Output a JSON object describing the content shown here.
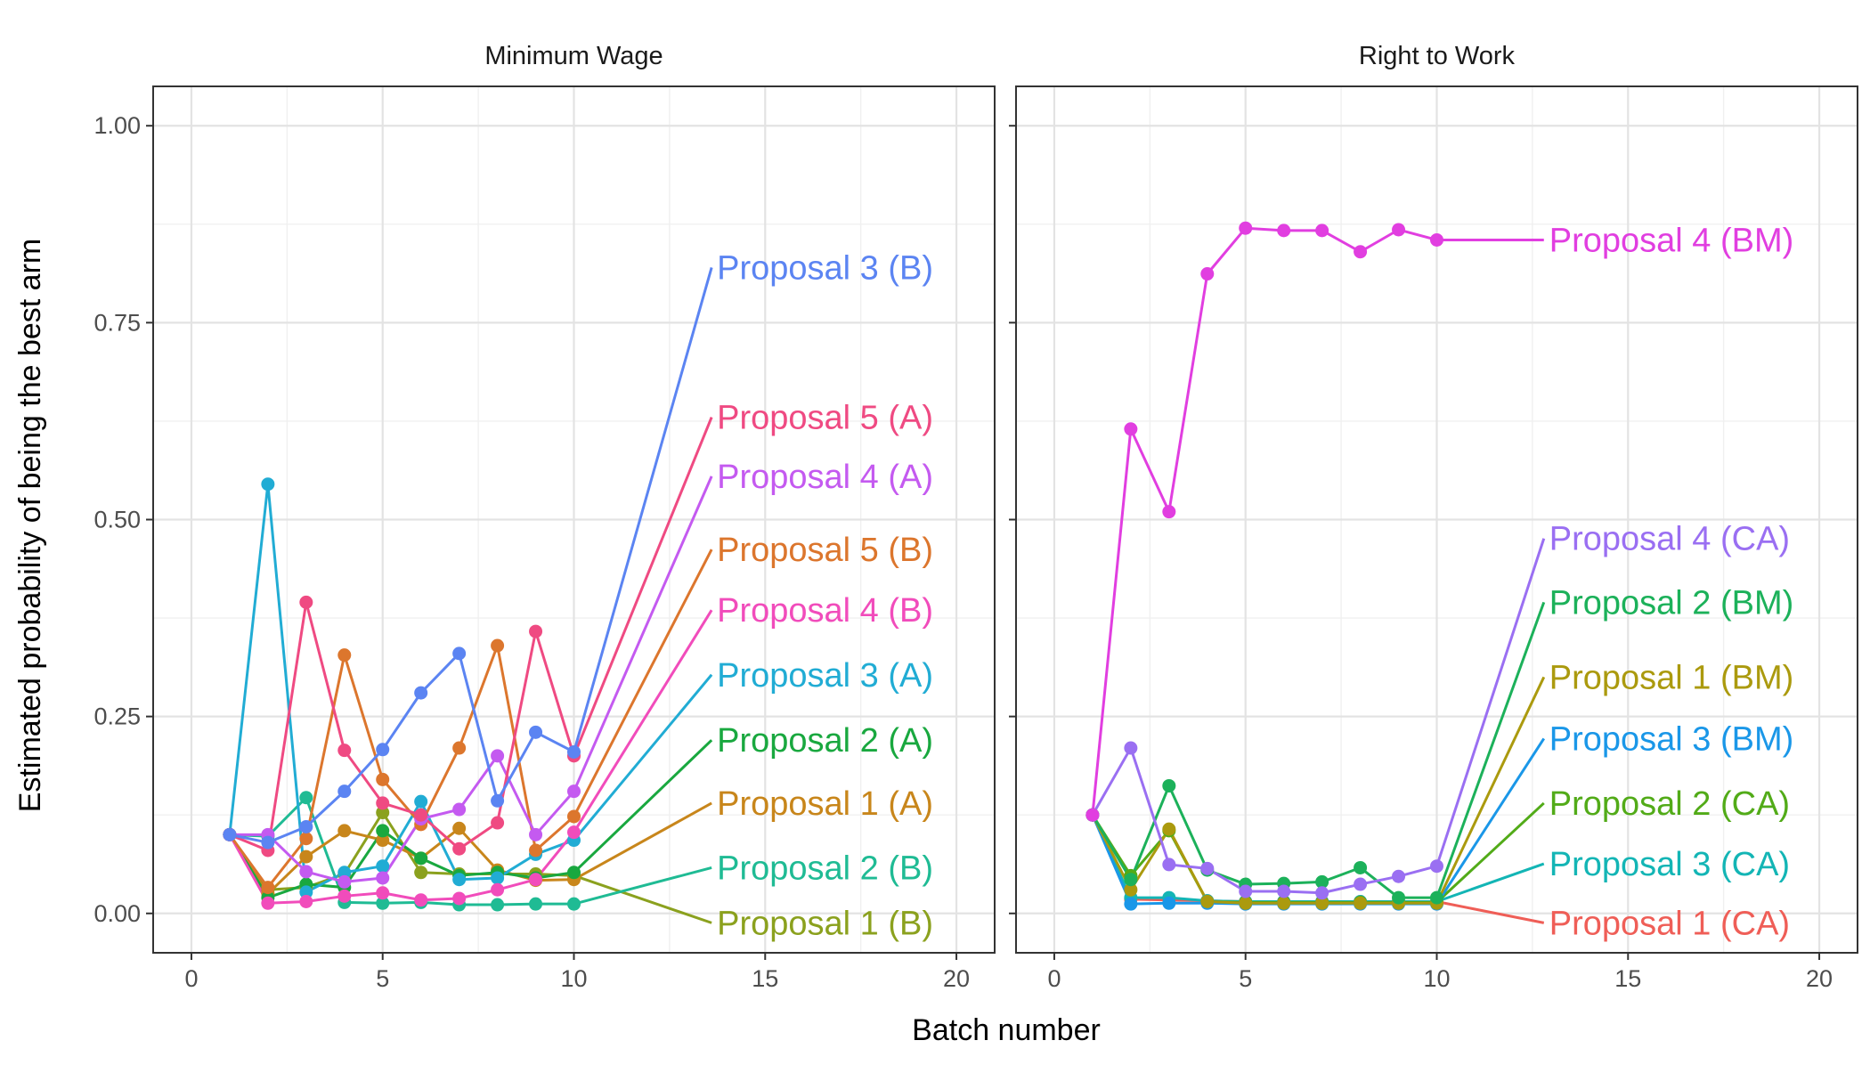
{
  "figure": {
    "ylabel": "Estimated probability of being the best arm",
    "xlabel": "Batch number"
  },
  "chart_data": [
    {
      "type": "line",
      "title": "Minimum Wage",
      "xlabel": "Batch number",
      "ylabel": "Estimated probability of being the best arm",
      "xlim": [
        -1,
        21
      ],
      "ylim": [
        -0.05,
        1.05
      ],
      "xticks": [
        0,
        5,
        10,
        15,
        20
      ],
      "xtick_labels": [
        "0",
        "5",
        "10",
        "15",
        "20"
      ],
      "yticks": [
        0,
        0.25,
        0.5,
        0.75,
        1
      ],
      "ytick_labels": [
        "0.00",
        "0.25",
        "0.50",
        "0.75",
        "1.00"
      ],
      "grid": true,
      "legend": "direct labels at right of each line",
      "label_x": 13.6,
      "x": [
        1,
        2,
        3,
        4,
        5,
        6,
        7,
        8,
        9,
        10
      ],
      "series": [
        {
          "name": "Proposal 3 (B)",
          "color": "#5b84f2",
          "values": [
            0.1,
            0.09,
            0.11,
            0.155,
            0.208,
            0.28,
            0.33,
            0.143,
            0.23,
            0.205
          ],
          "label_y": 0.82
        },
        {
          "name": "Proposal 5 (A)",
          "color": "#ef4a82",
          "values": [
            0.1,
            0.08,
            0.395,
            0.207,
            0.14,
            0.125,
            0.082,
            0.115,
            0.358,
            0.2
          ],
          "label_y": 0.63
        },
        {
          "name": "Proposal 4 (A)",
          "color": "#c45af0",
          "values": [
            0.1,
            0.1,
            0.053,
            0.04,
            0.045,
            0.12,
            0.132,
            0.2,
            0.1,
            0.155
          ],
          "label_y": 0.555
        },
        {
          "name": "Proposal 5 (B)",
          "color": "#dc762d",
          "values": [
            0.1,
            0.033,
            0.095,
            0.328,
            0.17,
            0.113,
            0.21,
            0.34,
            0.08,
            0.123
          ],
          "label_y": 0.462
        },
        {
          "name": "Proposal 4 (B)",
          "color": "#f14cbb",
          "values": [
            0.1,
            0.013,
            0.015,
            0.022,
            0.026,
            0.017,
            0.019,
            0.03,
            0.043,
            0.103
          ],
          "label_y": 0.385
        },
        {
          "name": "Proposal 3 (A)",
          "color": "#21acd4",
          "values": [
            0.1,
            0.545,
            0.027,
            0.052,
            0.06,
            0.142,
            0.043,
            0.045,
            0.075,
            0.093
          ],
          "label_y": 0.303
        },
        {
          "name": "Proposal 2 (A)",
          "color": "#19a83f",
          "values": [
            0.1,
            0.02,
            0.037,
            0.033,
            0.105,
            0.07,
            0.048,
            0.052,
            0.045,
            0.052
          ],
          "label_y": 0.22
        },
        {
          "name": "Proposal 1 (A)",
          "color": "#c8861b",
          "values": [
            0.1,
            0.025,
            0.072,
            0.105,
            0.093,
            0.07,
            0.108,
            0.055,
            0.042,
            0.043
          ],
          "label_y": 0.14
        },
        {
          "name": "Proposal 2 (B)",
          "color": "#1fbb94",
          "values": [
            0.1,
            0.098,
            0.147,
            0.014,
            0.013,
            0.014,
            0.011,
            0.011,
            0.012,
            0.012
          ],
          "label_y": 0.058
        },
        {
          "name": "Proposal 1 (B)",
          "color": "#8ba11e",
          "values": [
            0.1,
            0.03,
            0.033,
            0.05,
            0.128,
            0.052,
            0.05,
            0.05,
            0.05,
            0.048
          ],
          "label_y": -0.012
        }
      ]
    },
    {
      "type": "line",
      "title": "Right to Work",
      "xlabel": "Batch number",
      "ylabel": "",
      "xlim": [
        -1,
        21
      ],
      "ylim": [
        -0.05,
        1.05
      ],
      "xticks": [
        0,
        5,
        10,
        15,
        20
      ],
      "xtick_labels": [
        "0",
        "5",
        "10",
        "15",
        "20"
      ],
      "yticks": [
        0,
        0.25,
        0.5,
        0.75,
        1
      ],
      "grid": true,
      "legend": "direct labels at right of each line",
      "label_x": 12.8,
      "x": [
        1,
        2,
        3,
        4,
        5,
        6,
        7,
        8,
        9,
        10
      ],
      "series": [
        {
          "name": "Proposal 4 (BM)",
          "color": "#e13ee0",
          "values": [
            0.125,
            0.615,
            0.51,
            0.812,
            0.87,
            0.867,
            0.867,
            0.84,
            0.868,
            0.855
          ],
          "label_y": 0.855
        },
        {
          "name": "Proposal 4 (CA)",
          "color": "#9a6ff2",
          "values": [
            0.125,
            0.21,
            0.062,
            0.057,
            0.028,
            0.028,
            0.026,
            0.037,
            0.047,
            0.06
          ],
          "label_y": 0.476
        },
        {
          "name": "Proposal 2 (BM)",
          "color": "#1cb15a",
          "values": [
            0.125,
            0.043,
            0.162,
            0.055,
            0.037,
            0.038,
            0.04,
            0.058,
            0.02,
            0.02
          ],
          "label_y": 0.395
        },
        {
          "name": "Proposal 1 (BM)",
          "color": "#ab9a0e",
          "values": [
            0.125,
            0.03,
            0.107,
            0.015,
            0.013,
            0.013,
            0.013,
            0.013,
            0.013,
            0.013
          ],
          "label_y": 0.3
        },
        {
          "name": "Proposal 3 (BM)",
          "color": "#1a97e8",
          "values": [
            0.125,
            0.012,
            0.013,
            0.013,
            0.012,
            0.012,
            0.012,
            0.012,
            0.012,
            0.012
          ],
          "label_y": 0.222
        },
        {
          "name": "Proposal 2 (CA)",
          "color": "#52ab18",
          "values": [
            0.125,
            0.048,
            0.105,
            0.015,
            0.014,
            0.014,
            0.014,
            0.014,
            0.014,
            0.014
          ],
          "label_y": 0.14
        },
        {
          "name": "Proposal 3 (CA)",
          "color": "#13b5b5",
          "values": [
            0.125,
            0.02,
            0.02,
            0.016,
            0.015,
            0.015,
            0.015,
            0.015,
            0.015,
            0.015
          ],
          "label_y": 0.063
        },
        {
          "name": "Proposal 1 (CA)",
          "color": "#ef5e57",
          "values": [
            0.125,
            0.018,
            0.017,
            0.016,
            0.015,
            0.015,
            0.015,
            0.015,
            0.015,
            0.015
          ],
          "label_y": -0.012
        }
      ]
    }
  ]
}
